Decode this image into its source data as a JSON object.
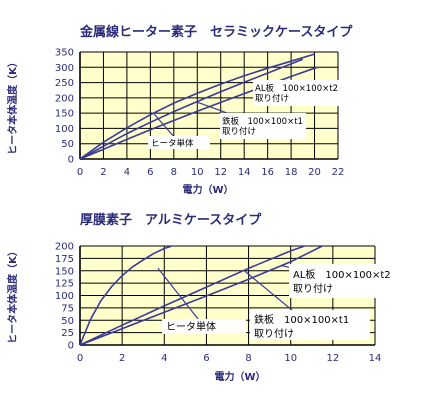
{
  "chart_data": [
    {
      "type": "line",
      "title": "金属線ヒーター素子　セラミックケースタイプ",
      "xlabel": "電力（W）",
      "ylabel": "ヒータ本体温度（K）",
      "xlim": [
        0,
        22
      ],
      "ylim": [
        0,
        350
      ],
      "xticks": [
        0,
        2,
        4,
        6,
        8,
        10,
        12,
        14,
        16,
        18,
        20,
        22
      ],
      "yticks": [
        0,
        50,
        100,
        150,
        200,
        250,
        300,
        350
      ],
      "grid": true,
      "series": [
        {
          "name": "ヒータ単体",
          "x": [
            0,
            2,
            4,
            6,
            8,
            10,
            12,
            14,
            16,
            18,
            20
          ],
          "y": [
            0,
            55,
            102,
            145,
            183,
            215,
            245,
            272,
            297,
            320,
            343
          ]
        },
        {
          "name": "鉄板　100×100×t1 取り付け",
          "x": [
            0,
            2,
            4,
            6,
            8,
            10,
            12,
            14,
            16,
            18,
            19
          ],
          "y": [
            0,
            42,
            83,
            120,
            155,
            188,
            220,
            251,
            281,
            311,
            326
          ]
        },
        {
          "name": "AL板　100×100×t2 取り付け",
          "x": [
            0,
            2,
            4,
            6,
            8,
            10,
            12,
            14,
            16,
            18,
            20,
            20.3
          ],
          "y": [
            0,
            32,
            64,
            96,
            126,
            156,
            185,
            214,
            242,
            270,
            297,
            300
          ]
        }
      ],
      "annotations": [
        {
          "lines": [
            "ヒータ単体"
          ]
        },
        {
          "lines": [
            "鉄板　100×100×t1",
            "取り付け"
          ]
        },
        {
          "lines": [
            "AL板　100×100×t2",
            "取り付け"
          ]
        }
      ]
    },
    {
      "type": "line",
      "title": "厚膜素子　アルミケースタイプ",
      "xlabel": "電力（W）",
      "ylabel": "ヒータ本体温度（K）",
      "xlim": [
        0,
        14
      ],
      "ylim": [
        0,
        200
      ],
      "xticks": [
        0,
        2,
        4,
        6,
        8,
        10,
        12,
        14
      ],
      "yticks": [
        0,
        25,
        50,
        75,
        100,
        125,
        150,
        175,
        200
      ],
      "grid": true,
      "series": [
        {
          "name": "ヒータ単体",
          "x": [
            0,
            0.5,
            1,
            1.5,
            2,
            2.5,
            3,
            3.5,
            4,
            4.5
          ],
          "y": [
            0,
            52,
            90,
            118,
            140,
            158,
            172,
            185,
            195,
            202
          ]
        },
        {
          "name": "鉄板　100×100×t1 取り付け",
          "x": [
            0,
            2,
            4,
            6,
            8,
            10,
            11
          ],
          "y": [
            0,
            40,
            79,
            117,
            155,
            190,
            205
          ]
        },
        {
          "name": "AL板　100×100×t2 取り付け",
          "x": [
            0,
            2,
            4,
            6,
            8,
            10,
            11.5
          ],
          "y": [
            0,
            33,
            66,
            99,
            133,
            168,
            200
          ]
        }
      ],
      "annotations": [
        {
          "lines": [
            "ヒータ単体"
          ]
        },
        {
          "lines": [
            "鉄板　100×100×t1",
            "取り付け"
          ]
        },
        {
          "lines": [
            "AL板　100×100×t2",
            "取り付け"
          ]
        }
      ]
    }
  ]
}
